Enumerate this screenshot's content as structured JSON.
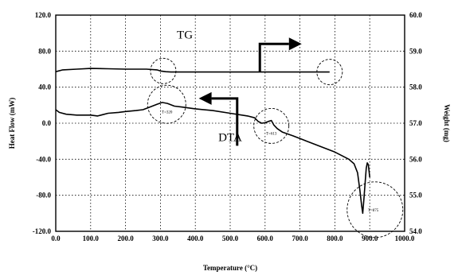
{
  "chart_data": {
    "type": "line",
    "xlabel": "Temperature (°C)",
    "ylabel_left": "Heat Flow (mW)",
    "ylabel_right": "Weight (mg)",
    "xlim": [
      0,
      1000
    ],
    "ylim_left": [
      -120,
      120
    ],
    "ylim_right": [
      54,
      60
    ],
    "x_ticks": [
      "0.0",
      "100.0",
      "200.0",
      "300.0",
      "400.0",
      "500.0",
      "600.0",
      "700.0",
      "800.0",
      "900.0",
      "1000.0"
    ],
    "y_ticks_left": [
      "120.0",
      "80.0",
      "40.0",
      "0.0",
      "-40.0",
      "-80.0",
      "-120.0"
    ],
    "y_ticks_right": [
      "60.0",
      "59.0",
      "58.0",
      "57.0",
      "56.0",
      "55.0",
      "54.0"
    ],
    "grid": true,
    "series": [
      {
        "name": "TG",
        "axis": "right",
        "color": "#000000",
        "points": [
          [
            0,
            58.43
          ],
          [
            20,
            58.48
          ],
          [
            60,
            58.5
          ],
          [
            100,
            58.52
          ],
          [
            150,
            58.51
          ],
          [
            200,
            58.5
          ],
          [
            260,
            58.5
          ],
          [
            290,
            58.48
          ],
          [
            300,
            58.45
          ],
          [
            315,
            58.43
          ],
          [
            330,
            58.42
          ],
          [
            400,
            58.42
          ],
          [
            500,
            58.42
          ],
          [
            600,
            58.42
          ],
          [
            700,
            58.42
          ],
          [
            760,
            58.42
          ],
          [
            785,
            58.42
          ]
        ]
      },
      {
        "name": "DTA",
        "axis": "left",
        "color": "#000000",
        "points": [
          [
            0,
            15
          ],
          [
            10,
            12
          ],
          [
            30,
            10
          ],
          [
            60,
            9
          ],
          [
            100,
            9
          ],
          [
            120,
            8
          ],
          [
            150,
            11
          ],
          [
            180,
            12
          ],
          [
            200,
            13
          ],
          [
            230,
            14
          ],
          [
            250,
            15
          ],
          [
            270,
            18
          ],
          [
            290,
            21
          ],
          [
            305,
            23
          ],
          [
            320,
            22
          ],
          [
            340,
            19
          ],
          [
            360,
            18
          ],
          [
            400,
            16
          ],
          [
            450,
            14
          ],
          [
            500,
            11
          ],
          [
            550,
            8
          ],
          [
            570,
            6
          ],
          [
            580,
            2
          ],
          [
            590,
            0
          ],
          [
            600,
            0.5
          ],
          [
            610,
            2
          ],
          [
            618,
            3
          ],
          [
            625,
            -2
          ],
          [
            635,
            -6
          ],
          [
            650,
            -10
          ],
          [
            680,
            -14
          ],
          [
            720,
            -20
          ],
          [
            760,
            -26
          ],
          [
            800,
            -32
          ],
          [
            820,
            -36
          ],
          [
            840,
            -40
          ],
          [
            855,
            -45
          ],
          [
            865,
            -55
          ],
          [
            872,
            -75
          ],
          [
            877,
            -92
          ],
          [
            880,
            -100
          ],
          [
            883,
            -85
          ],
          [
            887,
            -65
          ],
          [
            890,
            -50
          ],
          [
            893,
            -44
          ],
          [
            896,
            -46
          ],
          [
            900,
            -60
          ]
        ]
      }
    ],
    "annotations": [
      {
        "text": "TG",
        "x": 370,
        "y": 94
      },
      {
        "text": "DTA",
        "x": 500,
        "y": -20
      },
      {
        "text": "T=320",
        "x": 319,
        "y": 11
      },
      {
        "text": "T=613",
        "x": 618,
        "y": -13
      },
      {
        "text": "T=875",
        "x": 910,
        "y": -98
      }
    ],
    "circles": [
      {
        "x": 308,
        "y_right": 58.45,
        "r": 16
      },
      {
        "x": 785,
        "y_right": 58.42,
        "r": 16
      },
      {
        "x": 318,
        "y": 21,
        "r": 24
      },
      {
        "x": 618,
        "y": -3,
        "r": 22
      },
      {
        "x": 915,
        "y": -96,
        "r": 35
      }
    ],
    "arrows": [
      {
        "from": [
          585,
          58.42
        ],
        "corner": [
          585,
          59.2
        ],
        "to": [
          705,
          59.2
        ]
      },
      {
        "from": [
          520,
          -25
        ],
        "corner": [
          520,
          27.5
        ],
        "to": [
          410,
          27.5
        ]
      }
    ]
  }
}
